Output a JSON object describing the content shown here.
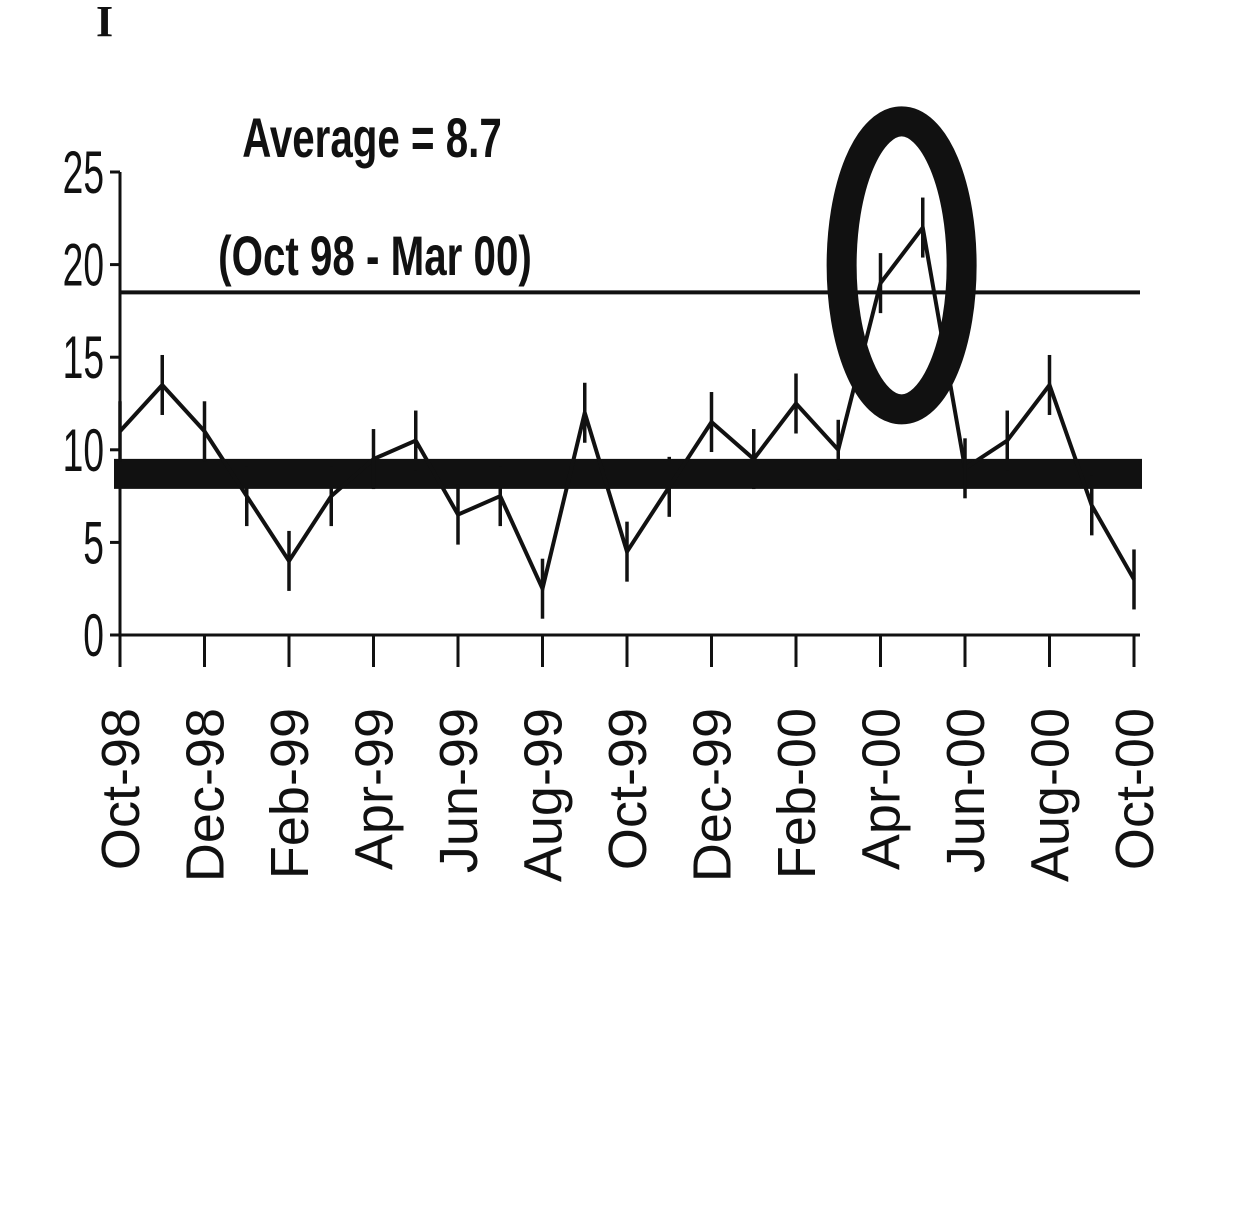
{
  "corner_mark": "I",
  "chart_data": {
    "type": "line",
    "annotations": {
      "average_label": "Average = 8.7",
      "period_label": "(Oct 98 - Mar 00)"
    },
    "average": 8.7,
    "upper_limit": 18.5,
    "ylim": [
      0,
      25
    ],
    "yticks": [
      "0",
      "5",
      "10",
      "15",
      "20",
      "25"
    ],
    "xlim": [
      "Oct-98",
      "Oct-00"
    ],
    "xticks": [
      "Oct-98",
      "Dec-98",
      "Feb-99",
      "Apr-99",
      "Jun-99",
      "Aug-99",
      "Oct-99",
      "Dec-99",
      "Feb-00",
      "Apr-00",
      "Jun-00",
      "Aug-00",
      "Oct-00"
    ],
    "x": [
      "Oct-98",
      "Nov-98",
      "Dec-98",
      "Jan-99",
      "Feb-99",
      "Mar-99",
      "Apr-99",
      "May-99",
      "Jun-99",
      "Jul-99",
      "Aug-99",
      "Sep-99",
      "Oct-99",
      "Nov-99",
      "Dec-99",
      "Jan-00",
      "Feb-00",
      "Mar-00",
      "Apr-00",
      "May-00",
      "Jun-00",
      "Jul-00",
      "Aug-00",
      "Sep-00",
      "Oct-00"
    ],
    "values": [
      11,
      13.5,
      11,
      7.5,
      4,
      7.5,
      9.5,
      10.5,
      6.5,
      7.5,
      2.5,
      12,
      4.5,
      8,
      11.5,
      9.5,
      12.5,
      10,
      19,
      22,
      9,
      10.5,
      13.5,
      7,
      3
    ],
    "highlight": [
      "Apr-00",
      "May-00"
    ],
    "grid": false,
    "legend": "none"
  }
}
